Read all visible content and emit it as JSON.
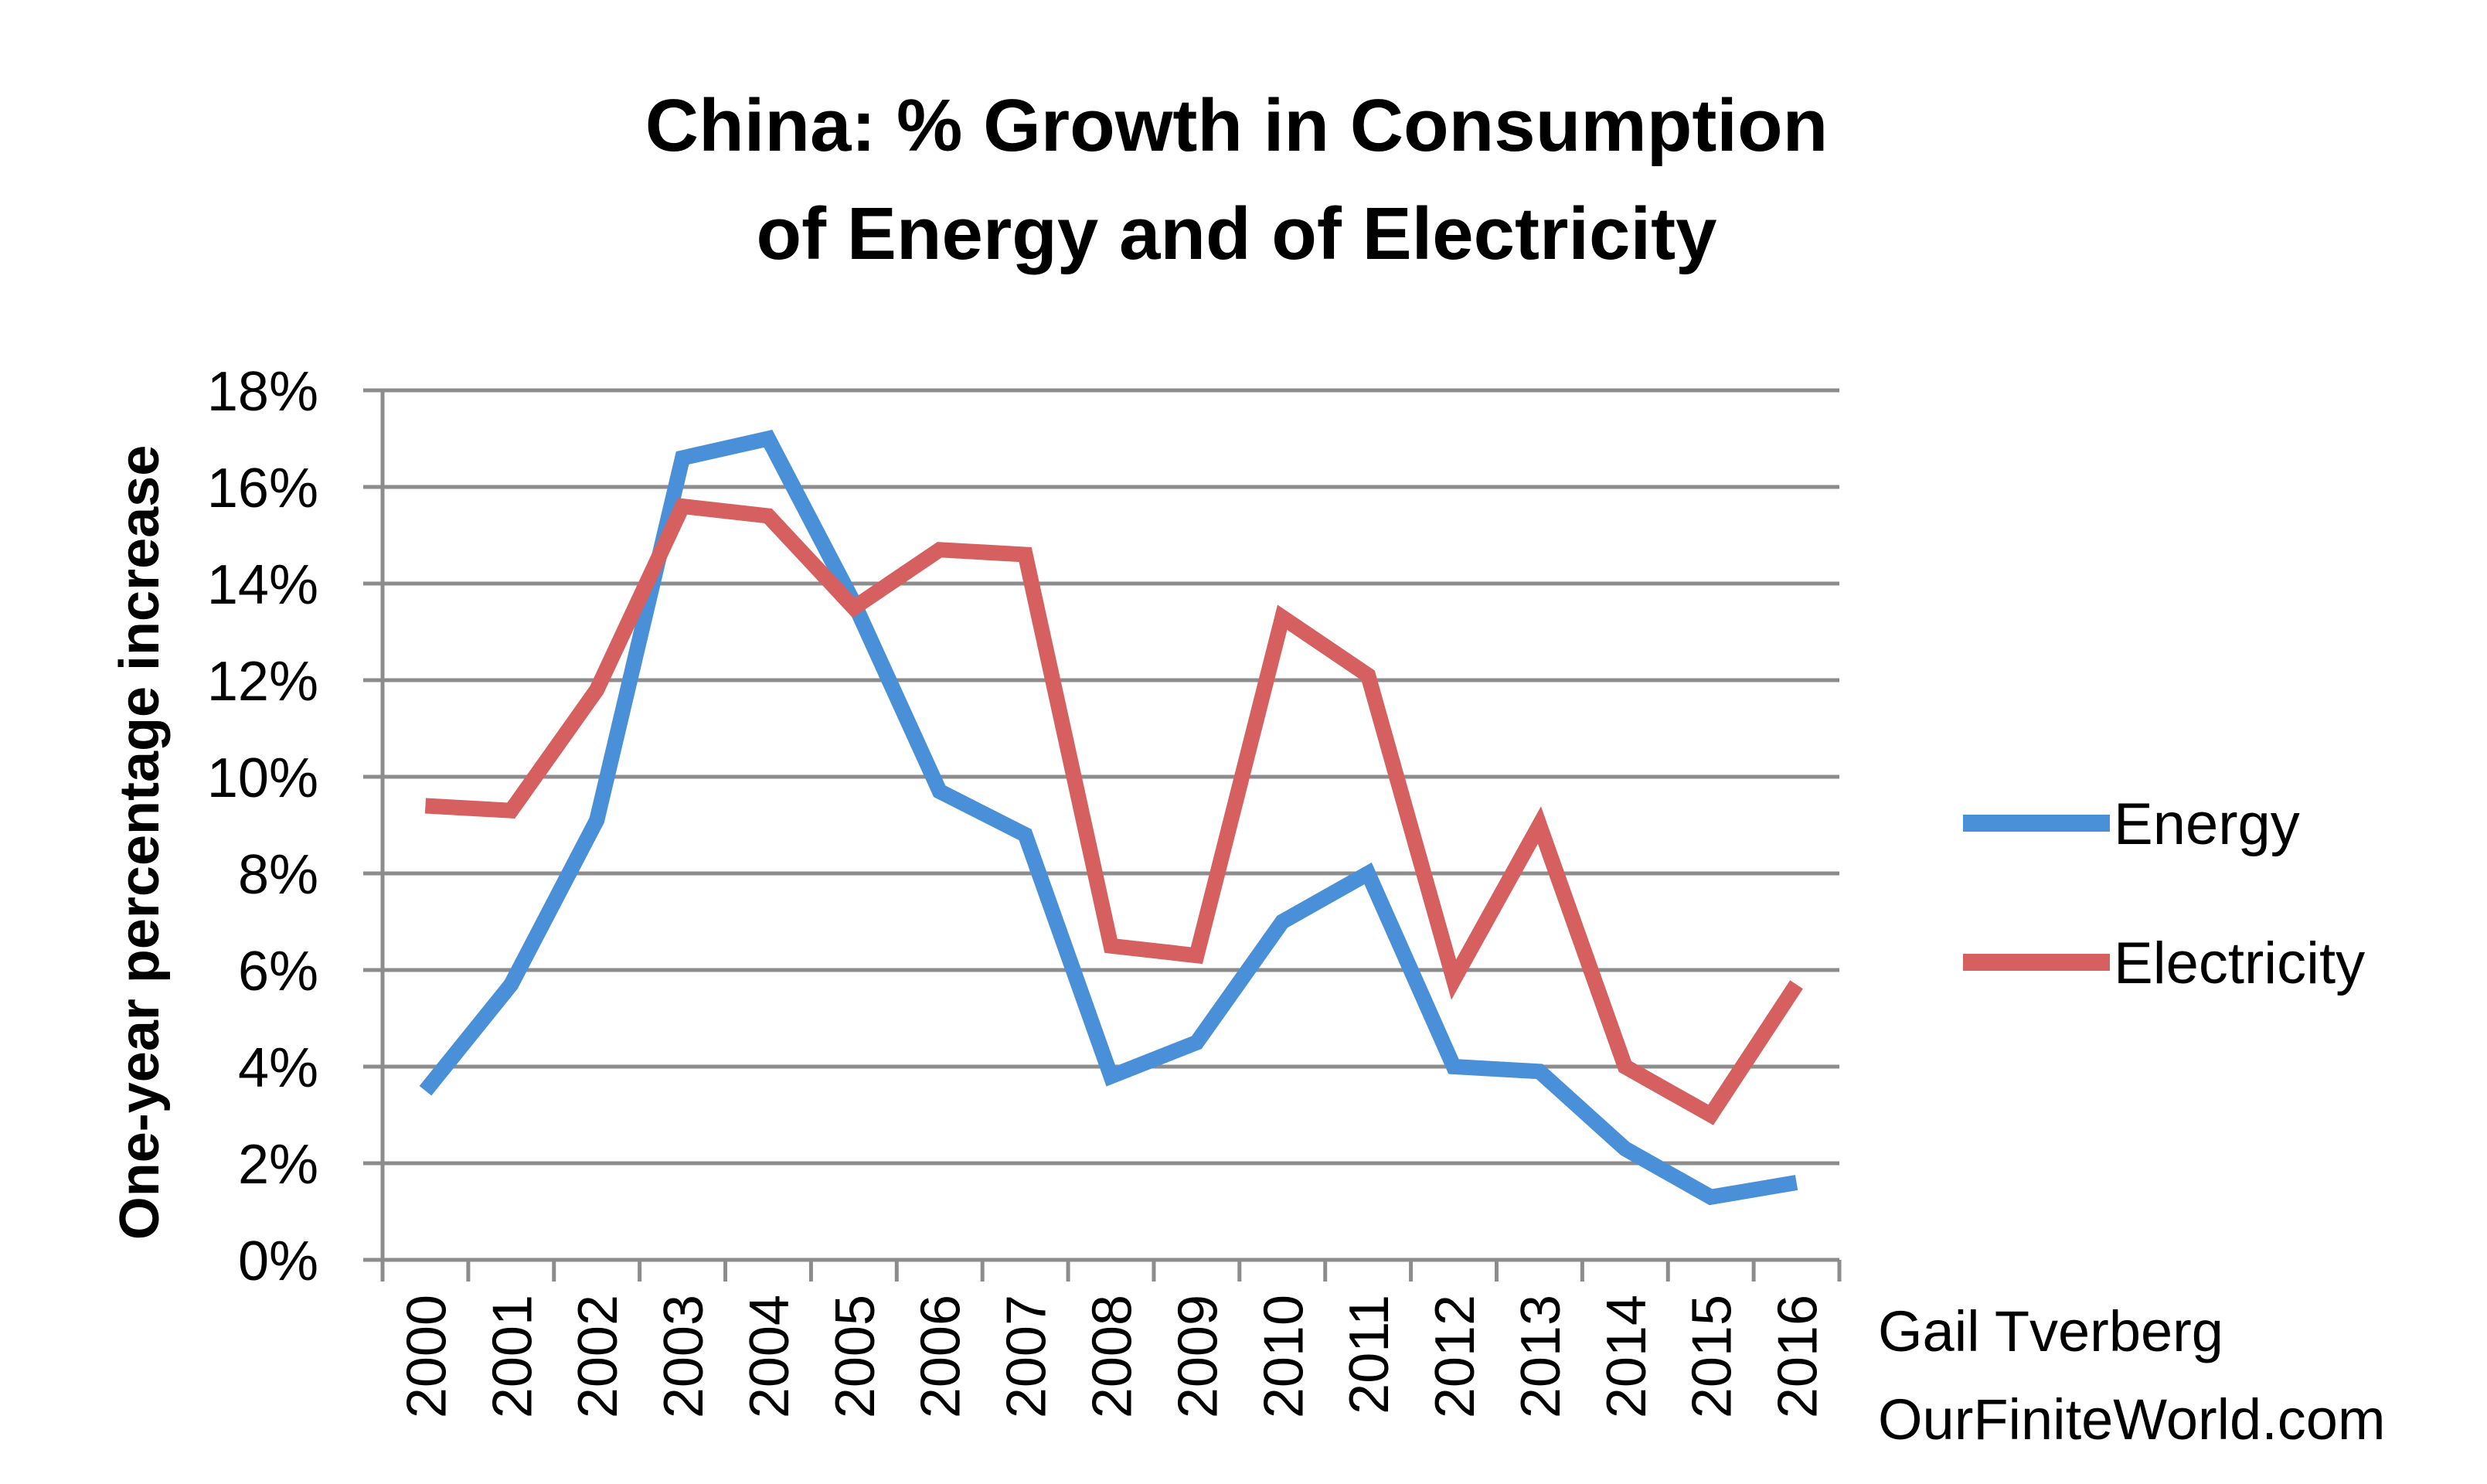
{
  "chart_data": {
    "type": "line",
    "title_line1": "China: % Growth in Consumption",
    "title_line2": "of Energy and of Electricity",
    "ylabel": "One-year percentage increase",
    "xlabel": "",
    "ylim": [
      0,
      18
    ],
    "y_ticks": [
      "0%",
      "2%",
      "4%",
      "6%",
      "8%",
      "10%",
      "12%",
      "14%",
      "16%",
      "18%"
    ],
    "y_tick_values": [
      0,
      2,
      4,
      6,
      8,
      10,
      12,
      14,
      16,
      18
    ],
    "categories": [
      "2000",
      "2001",
      "2002",
      "2003",
      "2004",
      "2005",
      "2006",
      "2007",
      "2008",
      "2009",
      "2010",
      "2011",
      "2012",
      "2013",
      "2014",
      "2015",
      "2016"
    ],
    "grid": true,
    "legend_position": "right",
    "series": [
      {
        "name": "Energy",
        "color": "#4a90d9",
        "values": [
          3.5,
          5.7,
          9.1,
          16.6,
          17.0,
          13.6,
          9.7,
          8.8,
          3.8,
          4.5,
          7.0,
          8.0,
          4.0,
          3.9,
          2.3,
          1.3,
          1.6
        ]
      },
      {
        "name": "Electricity",
        "color": "#d65f5f",
        "values": [
          9.4,
          9.3,
          11.8,
          15.6,
          15.4,
          13.5,
          14.7,
          14.6,
          6.5,
          6.3,
          13.3,
          12.1,
          5.8,
          9.0,
          4.0,
          3.0,
          5.7
        ]
      }
    ]
  },
  "credit": {
    "author": "Gail Tverberg",
    "site": "OurFiniteWorld.com"
  }
}
